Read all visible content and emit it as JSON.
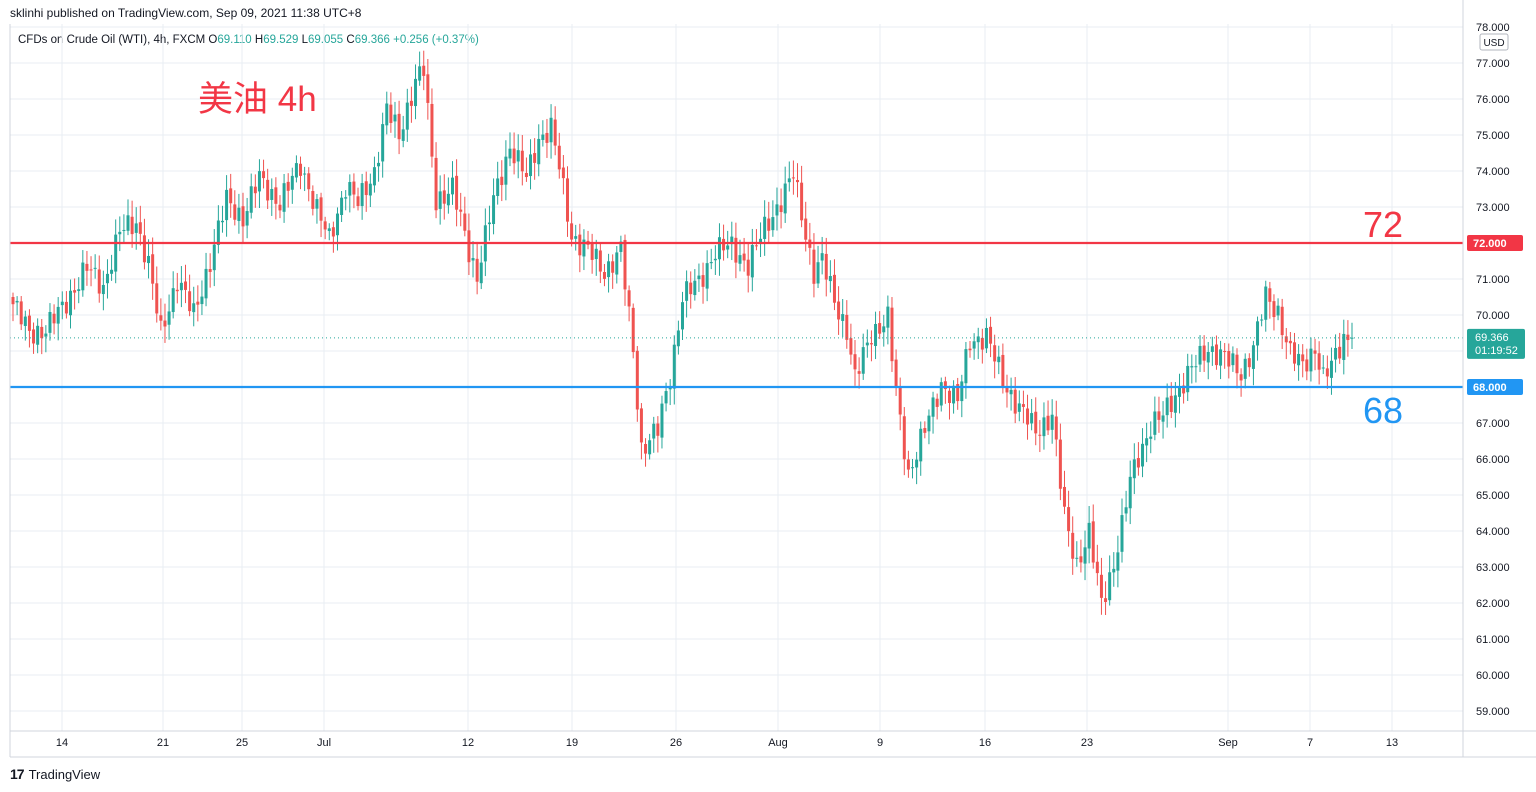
{
  "header": {
    "published_line": "sklinhi published on TradingView.com, Sep 09, 2021 11:38 UTC+8"
  },
  "legend": {
    "symbol": "CFDs on Crude Oil (WTI), 4h, FXCM",
    "o_label": "O",
    "o_value": "69.110",
    "h_label": "H",
    "h_value": "69.529",
    "l_label": "L",
    "l_value": "69.055",
    "c_label": "C",
    "c_value": "69.366",
    "change": "+0.256 (+0.37%)"
  },
  "footer": {
    "logo": "17",
    "brand": "TradingView"
  },
  "currency_badge": "USD",
  "colors": {
    "up": "#26a69a",
    "down": "#ef5350",
    "line72": "#f23645",
    "line68": "#2196f3",
    "grid": "#e9edf3"
  },
  "chart_data": {
    "type": "candlestick",
    "title": "美油 4h",
    "price_axis_ticks": [
      "59.000",
      "60.000",
      "61.000",
      "62.000",
      "63.000",
      "64.000",
      "65.000",
      "66.000",
      "67.000",
      "68.000",
      "69.000",
      "70.000",
      "71.000",
      "72.000",
      "73.000",
      "74.000",
      "75.000",
      "76.000",
      "77.000",
      "78.000"
    ],
    "ylim": [
      58.5,
      78.0
    ],
    "x_ticks": [
      "14",
      "21",
      "25",
      "Jul",
      "12",
      "19",
      "26",
      "Aug",
      "9",
      "16",
      "23",
      "Sep",
      "7",
      "13"
    ],
    "horizontal_lines": [
      {
        "value": 72.0,
        "label": "72",
        "axis_label": "72.000",
        "color": "#f23645"
      },
      {
        "value": 68.0,
        "label": "68",
        "axis_label": "68.000",
        "color": "#2196f3"
      }
    ],
    "last_price": {
      "value": 69.366,
      "label": "69.366",
      "countdown": "01:19:52"
    },
    "anchors": [
      [
        0,
        70.3
      ],
      [
        4,
        69.5
      ],
      [
        8,
        69.6
      ],
      [
        12,
        70.2
      ],
      [
        18,
        71.3
      ],
      [
        22,
        70.8
      ],
      [
        26,
        72.3
      ],
      [
        30,
        72.6
      ],
      [
        33,
        71.4
      ],
      [
        36,
        69.5
      ],
      [
        40,
        71.0
      ],
      [
        44,
        70.0
      ],
      [
        48,
        71.5
      ],
      [
        52,
        73.2
      ],
      [
        56,
        72.7
      ],
      [
        60,
        73.8
      ],
      [
        65,
        73.1
      ],
      [
        70,
        74.2
      ],
      [
        74,
        72.9
      ],
      [
        77,
        72.1
      ],
      [
        81,
        73.6
      ],
      [
        84,
        73.1
      ],
      [
        88,
        74.0
      ],
      [
        91,
        75.7
      ],
      [
        94,
        75.0
      ],
      [
        98,
        76.5
      ],
      [
        100,
        76.8
      ],
      [
        103,
        73.2
      ],
      [
        107,
        73.5
      ],
      [
        111,
        71.8
      ],
      [
        113,
        71.1
      ],
      [
        117,
        73.2
      ],
      [
        121,
        74.7
      ],
      [
        125,
        73.8
      ],
      [
        128,
        74.9
      ],
      [
        131,
        75.2
      ],
      [
        133,
        74.1
      ],
      [
        136,
        72.2
      ],
      [
        140,
        71.8
      ],
      [
        144,
        71.2
      ],
      [
        148,
        71.8
      ],
      [
        151,
        69.0
      ],
      [
        153,
        66.3
      ],
      [
        157,
        66.8
      ],
      [
        160,
        68.3
      ],
      [
        163,
        70.5
      ],
      [
        167,
        70.9
      ],
      [
        171,
        71.8
      ],
      [
        175,
        71.9
      ],
      [
        179,
        71.4
      ],
      [
        183,
        72.4
      ],
      [
        187,
        73.2
      ],
      [
        190,
        73.9
      ],
      [
        192,
        72.8
      ],
      [
        195,
        71.2
      ],
      [
        197,
        71.5
      ],
      [
        200,
        70.4
      ],
      [
        203,
        69.6
      ],
      [
        205,
        68.2
      ],
      [
        209,
        69.5
      ],
      [
        213,
        69.9
      ],
      [
        215,
        67.8
      ],
      [
        218,
        65.6
      ],
      [
        222,
        66.8
      ],
      [
        226,
        68.1
      ],
      [
        230,
        67.6
      ],
      [
        233,
        69.3
      ],
      [
        237,
        69.4
      ],
      [
        241,
        68.2
      ],
      [
        245,
        67.4
      ],
      [
        249,
        66.8
      ],
      [
        253,
        67.2
      ],
      [
        256,
        64.4
      ],
      [
        259,
        63.1
      ],
      [
        262,
        63.9
      ],
      [
        265,
        62.0
      ],
      [
        268,
        63.1
      ],
      [
        270,
        64.1
      ],
      [
        272,
        65.4
      ],
      [
        274,
        66.1
      ],
      [
        277,
        66.9
      ],
      [
        280,
        67.2
      ],
      [
        283,
        67.8
      ],
      [
        287,
        68.5
      ],
      [
        291,
        69.1
      ],
      [
        295,
        68.8
      ],
      [
        299,
        68.4
      ],
      [
        302,
        69.1
      ],
      [
        305,
        70.5
      ],
      [
        308,
        70.1
      ],
      [
        311,
        68.9
      ],
      [
        314,
        68.6
      ],
      [
        317,
        69.1
      ],
      [
        319,
        68.2
      ],
      [
        321,
        68.6
      ],
      [
        324,
        69.4
      ],
      [
        326,
        69.37
      ]
    ]
  }
}
